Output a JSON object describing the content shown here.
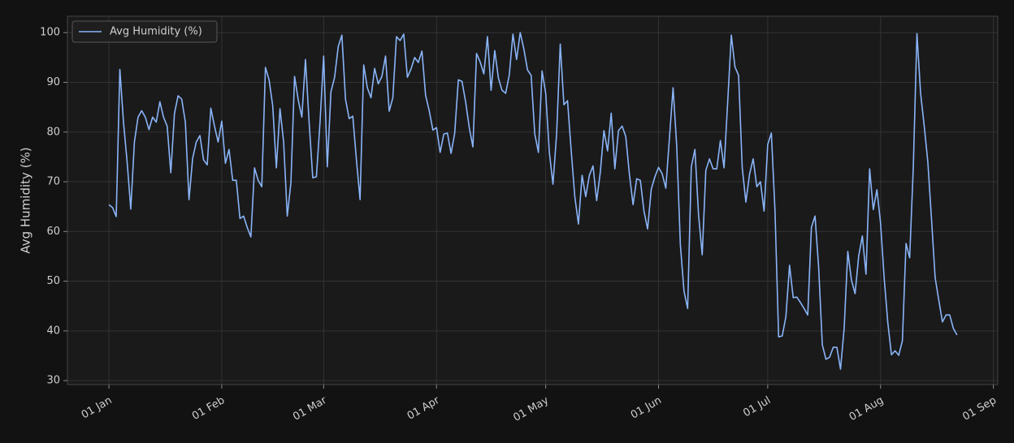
{
  "chart_data": {
    "type": "line",
    "y_label": "Avg Humidity (%)",
    "x": [
      0,
      1,
      2,
      3,
      4,
      5,
      6,
      7,
      8,
      9,
      10,
      11,
      12,
      13,
      14,
      15,
      16,
      17,
      18,
      19,
      20,
      21,
      22,
      23,
      24,
      25,
      26,
      27,
      28,
      29,
      30,
      31,
      32,
      33,
      34,
      35,
      36,
      37,
      38,
      39,
      40,
      41,
      42,
      43,
      44,
      45,
      46,
      47,
      48,
      49,
      50,
      51,
      52,
      53,
      54,
      55,
      56,
      57,
      58,
      59,
      60,
      61,
      62,
      63,
      64,
      65,
      66,
      67,
      68,
      69,
      70,
      71,
      72,
      73,
      74,
      75,
      76,
      77,
      78,
      79,
      80,
      81,
      82,
      83,
      84,
      85,
      86,
      87,
      88,
      89,
      90,
      91,
      92,
      93,
      94,
      95,
      96,
      97,
      98,
      99,
      100,
      101,
      102,
      103,
      104,
      105,
      106,
      107,
      108,
      109,
      110,
      111,
      112,
      113,
      114,
      115,
      116,
      117,
      118,
      119,
      120,
      121,
      122,
      123,
      124,
      125,
      126,
      127,
      128,
      129,
      130,
      131,
      132,
      133,
      134,
      135,
      136,
      137,
      138,
      139,
      140,
      141,
      142,
      143,
      144,
      145,
      146,
      147,
      148,
      149,
      150,
      151,
      152,
      153,
      154,
      155,
      156,
      157,
      158,
      159,
      160,
      161,
      162,
      163,
      164,
      165,
      166,
      167,
      168,
      169,
      170,
      171,
      172,
      173,
      174,
      175,
      176,
      177,
      178,
      179,
      180,
      181,
      182,
      183,
      184,
      185,
      186,
      187,
      188,
      189,
      190,
      191,
      192,
      193,
      194,
      195,
      196,
      197,
      198,
      199,
      200,
      201,
      202,
      203,
      204,
      205,
      206,
      207,
      208,
      209,
      210,
      211,
      212,
      213,
      214,
      215,
      216,
      217,
      218,
      219,
      220,
      221,
      222,
      223,
      224,
      225,
      226,
      227,
      228,
      229,
      230,
      231,
      232,
      233
    ],
    "series": [
      {
        "name": "Avg Humidity (%)",
        "color": "#8ab4f8",
        "values": [
          65.4,
          64.8,
          63,
          92.6,
          82,
          74,
          64.5,
          78,
          83,
          84.3,
          83,
          80.5,
          83,
          82,
          86.1,
          83,
          81.2,
          71.8,
          83.7,
          87.3,
          86.6,
          82,
          66.4,
          74.7,
          78,
          79.3,
          74.4,
          73.4,
          84.8,
          81.2,
          78,
          82.2,
          73.7,
          76.5,
          70.3,
          70.3,
          62.6,
          63.1,
          60.8,
          58.9,
          72.8,
          70.3,
          69,
          93,
          90.5,
          85.3,
          72.8,
          84.7,
          78,
          63.1,
          69.8,
          91.2,
          86.5,
          83,
          94.6,
          82,
          70.8,
          71,
          82,
          95.3,
          73,
          88.1,
          91,
          97.2,
          99.5,
          86.6,
          82.7,
          83.2,
          74.4,
          66.4,
          93.5,
          88.9,
          86.9,
          92.8,
          89.7,
          91.2,
          95.3,
          84.2,
          86.9,
          99.2,
          98.4,
          99.7,
          91,
          92.7,
          95,
          94,
          96.3,
          87.4,
          84.3,
          80.4,
          80.9,
          75.9,
          79.6,
          79.8,
          75.7,
          79.8,
          90.5,
          90.2,
          86.1,
          80.9,
          77,
          95.8,
          94.1,
          91.7,
          99.2,
          88.4,
          96.4,
          90.9,
          88.4,
          87.8,
          91.5,
          99.7,
          94.6,
          100,
          96.7,
          92.5,
          91.4,
          79.6,
          75.9,
          92.3,
          87.8,
          75.9,
          69.5,
          79.6,
          97.7,
          85.5,
          86.3,
          76.3,
          67,
          61.5,
          71.3,
          67,
          71.3,
          73.2,
          66.2,
          71.9,
          80.3,
          76.2,
          83.8,
          72.6,
          80.3,
          81.2,
          79.1,
          71.5,
          65.4,
          70.6,
          70.3,
          64.1,
          60.5,
          68.5,
          71,
          72.9,
          71.6,
          68.7,
          78.8,
          88.9,
          77.2,
          57.3,
          48,
          44.5,
          73,
          76.5,
          63.3,
          55.3,
          72.3,
          74.6,
          72.6,
          72.6,
          78.3,
          72.8,
          86,
          99.5,
          93.1,
          91.4,
          72.8,
          65.9,
          71.5,
          74.6,
          69,
          70,
          64.1,
          77.5,
          79.8,
          64.1,
          38.8,
          39,
          42.9,
          53.2,
          46.7,
          46.8,
          45.7,
          44.5,
          43.2,
          60.8,
          63.1,
          52.7,
          37.2,
          34.3,
          34.7,
          36.7,
          36.7,
          32.3,
          40.5,
          56,
          50.2,
          47.5,
          55.1,
          59.1,
          51.4,
          72.6,
          64.4,
          68.4,
          61.7,
          50.6,
          41.6,
          35.2,
          36,
          35.1,
          38,
          57.6,
          54.7,
          73,
          99.8,
          87.8,
          81.2,
          73.9,
          62.5,
          50.7,
          46.2,
          41.8,
          43.2,
          43.2,
          40.5,
          39.2
        ]
      }
    ],
    "xlim": [
      -11.4,
      244.2
    ],
    "ylim": [
      29.2,
      103.3
    ],
    "xticks": [
      {
        "value": 0,
        "label": "01 Jan"
      },
      {
        "value": 31,
        "label": "01 Feb"
      },
      {
        "value": 59,
        "label": "01 Mar"
      },
      {
        "value": 90,
        "label": "01 Apr"
      },
      {
        "value": 120,
        "label": "01 May"
      },
      {
        "value": 151,
        "label": "01 Jun"
      },
      {
        "value": 181,
        "label": "01 Jul"
      },
      {
        "value": 212,
        "label": "01 Aug"
      },
      {
        "value": 243,
        "label": "01 Sep"
      }
    ],
    "yticks": [
      30,
      40,
      50,
      60,
      70,
      80,
      90,
      100
    ],
    "grid": true,
    "legend": "upper left"
  }
}
